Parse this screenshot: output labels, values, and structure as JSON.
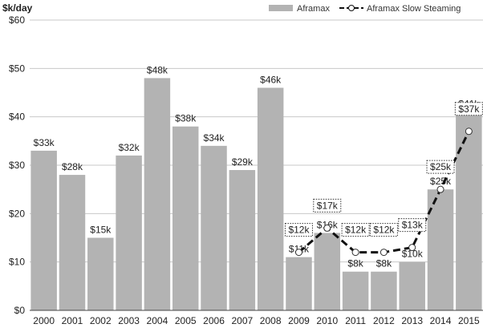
{
  "chart_data": {
    "type": "bar",
    "title": "",
    "ylabel": "$k/day",
    "xlabel": "",
    "ylim": [
      0,
      60
    ],
    "yticks": [
      0,
      10,
      20,
      30,
      40,
      50,
      60
    ],
    "ytick_labels": [
      "$0",
      "$10",
      "$20",
      "$30",
      "$40",
      "$50",
      "$60"
    ],
    "grid": true,
    "legend_position": "top-right",
    "categories": [
      "2000",
      "2001",
      "2002",
      "2003",
      "2004",
      "2005",
      "2006",
      "2007",
      "2008",
      "2009",
      "2010",
      "2011",
      "2012",
      "2013",
      "2014",
      "2015"
    ],
    "series": [
      {
        "name": "Aframax",
        "kind": "bar",
        "color": "#b3b3b3",
        "values": [
          33,
          28,
          15,
          32,
          48,
          38,
          34,
          29,
          46,
          11,
          16,
          8,
          8,
          10,
          25,
          41
        ],
        "labels": [
          "$33k",
          "$28k",
          "$15k",
          "$32k",
          "$48k",
          "$38k",
          "$34k",
          "$29k",
          "$46k",
          "$11k",
          "$16k",
          "$8k",
          "$8k",
          "$10k",
          "$25k",
          "$41k"
        ]
      },
      {
        "name": "Aframax Slow Steaming",
        "kind": "line",
        "style": "dashed",
        "color": "#111111",
        "x": [
          "2009",
          "2010",
          "2011",
          "2012",
          "2013",
          "2014",
          "2015"
        ],
        "values": [
          12,
          17,
          12,
          12,
          13,
          25,
          37
        ],
        "labels": [
          "$12k",
          "$17k",
          "$12k",
          "$12k",
          "$13k",
          "$25k",
          "$37k"
        ]
      }
    ]
  }
}
